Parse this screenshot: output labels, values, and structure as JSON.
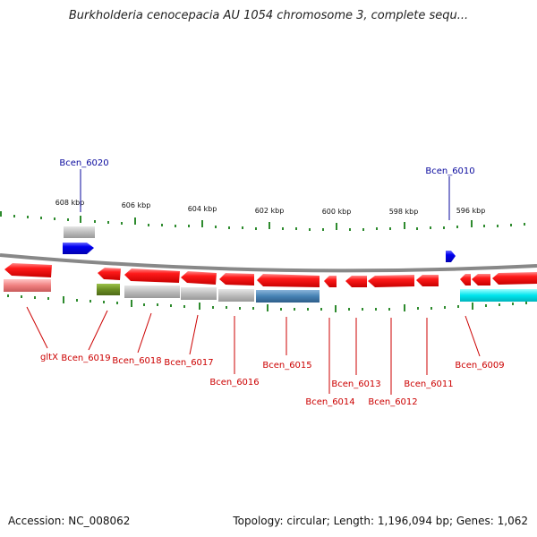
{
  "title": "Burkholderia cenocepacia AU 1054 chromosome 3, complete sequ...",
  "axis_ticks": [
    "608 kbp",
    "606 kbp",
    "604 kbp",
    "602 kbp",
    "600 kbp",
    "598 kbp",
    "596 kbp"
  ],
  "genes_top": [
    {
      "label": "Bcen_6020",
      "color": "#0a0a9e"
    },
    {
      "label": "Bcen_6010",
      "color": "#0a0a9e"
    }
  ],
  "genes_bottom": [
    {
      "label": "gltX",
      "color": "#cc0000"
    },
    {
      "label": "Bcen_6019",
      "color": "#cc0000"
    },
    {
      "label": "Bcen_6018",
      "color": "#cc0000"
    },
    {
      "label": "Bcen_6017",
      "color": "#cc0000"
    },
    {
      "label": "Bcen_6016",
      "color": "#cc0000"
    },
    {
      "label": "Bcen_6015",
      "color": "#cc0000"
    },
    {
      "label": "Bcen_6014",
      "color": "#cc0000"
    },
    {
      "label": "Bcen_6013",
      "color": "#cc0000"
    },
    {
      "label": "Bcen_6012",
      "color": "#cc0000"
    },
    {
      "label": "Bcen_6011",
      "color": "#cc0000"
    },
    {
      "label": "Bcen_6009",
      "color": "#cc0000"
    }
  ],
  "colors": {
    "forward_gene": "#0000ee",
    "reverse_gene": "#ee0000",
    "tick": "#2e8b2e",
    "backbone": "#888888",
    "rna_pink": "#f08080",
    "olive": "#6b8e23",
    "gray_feature": "#bbbbbb",
    "steelblue_feature": "#4682b4",
    "cyan_feature": "#00e5ee"
  },
  "footer": {
    "accession": "Accession: NC_008062",
    "topology": "Topology: circular; Length: 1,196,094 bp; Genes: 1,062"
  }
}
